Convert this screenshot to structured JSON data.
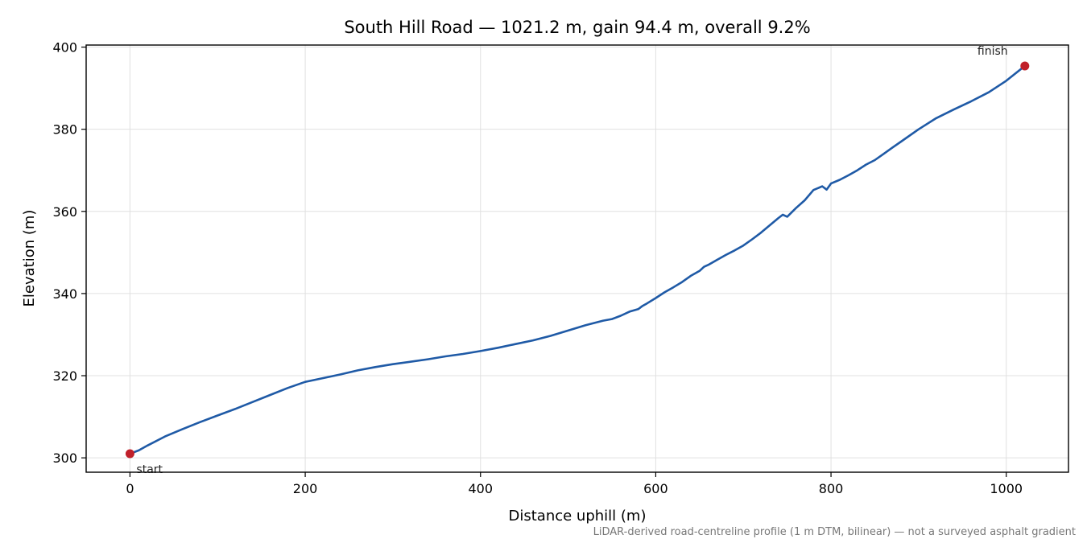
{
  "chart_data": {
    "type": "line",
    "title": "South Hill Road — 1021.2 m, gain 94.4 m, overall 9.2%",
    "xlabel": "Distance uphill (m)",
    "ylabel": "Elevation (m)",
    "xlim": [
      -50,
      1071
    ],
    "ylim": [
      296.5,
      400.5
    ],
    "xticks": [
      0,
      200,
      400,
      600,
      800,
      1000
    ],
    "yticks": [
      300,
      320,
      340,
      360,
      380,
      400
    ],
    "grid": true,
    "footnote": "LiDAR-derived road-centreline profile (1 m DTM, bilinear) — not a surveyed asphalt gradient",
    "colors": {
      "line": "#1f5aa6",
      "marker": "#c0202a",
      "grid": "#e0e0e0"
    },
    "series": [
      {
        "x": [
          0,
          10,
          20,
          40,
          60,
          80,
          100,
          120,
          140,
          160,
          180,
          200,
          220,
          240,
          260,
          280,
          300,
          320,
          340,
          360,
          380,
          400,
          420,
          440,
          460,
          480,
          500,
          520,
          540,
          550,
          560,
          570,
          580,
          585,
          590,
          600,
          610,
          620,
          630,
          640,
          650,
          655,
          660,
          670,
          680,
          690,
          700,
          710,
          720,
          730,
          740,
          745,
          750,
          760,
          770,
          780,
          790,
          795,
          800,
          810,
          820,
          830,
          840,
          850,
          860,
          870,
          880,
          900,
          920,
          940,
          960,
          980,
          1000,
          1021.2
        ],
        "y": [
          301.0,
          301.8,
          303.0,
          305.2,
          307.0,
          308.7,
          310.3,
          311.9,
          313.6,
          315.3,
          317.0,
          318.5,
          319.4,
          320.3,
          321.3,
          322.1,
          322.8,
          323.4,
          324.0,
          324.7,
          325.3,
          326.0,
          326.8,
          327.7,
          328.6,
          329.7,
          331.0,
          332.3,
          333.4,
          333.8,
          334.6,
          335.6,
          336.2,
          337.0,
          337.6,
          338.9,
          340.3,
          341.5,
          342.8,
          344.3,
          345.5,
          346.5,
          347.0,
          348.2,
          349.4,
          350.5,
          351.7,
          353.2,
          354.8,
          356.6,
          358.4,
          359.2,
          358.7,
          360.8,
          362.7,
          365.2,
          366.1,
          365.3,
          366.8,
          367.7,
          368.8,
          370.0,
          371.4,
          372.5,
          374.0,
          375.5,
          377.0,
          380.0,
          382.7,
          384.8,
          386.8,
          389.0,
          391.8,
          395.4
        ]
      }
    ],
    "markers": [
      {
        "label": "start",
        "x": 0,
        "y": 301.0
      },
      {
        "label": "finish",
        "x": 1021.2,
        "y": 395.4
      }
    ]
  }
}
